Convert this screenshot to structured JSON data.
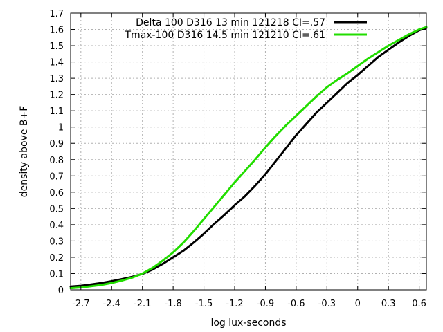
{
  "chart_data": {
    "type": "line",
    "xlabel": "log lux-seconds",
    "ylabel": "density above B+F",
    "xlim": [
      -2.8,
      0.67
    ],
    "ylim": [
      0,
      1.7
    ],
    "x_ticks": [
      -2.7,
      -2.4,
      -2.1,
      -1.8,
      -1.5,
      -1.2,
      -0.9,
      -0.6,
      -0.3,
      0,
      0.3,
      0.6
    ],
    "x_tick_labels": [
      "-2.7",
      "-2.4",
      "-2.1",
      "-1.8",
      "-1.5",
      "-1.2",
      "-0.9",
      "-0.6",
      "-0.3",
      "0",
      "0.3",
      "0.6"
    ],
    "y_ticks": [
      0,
      0.1,
      0.2,
      0.3,
      0.4,
      0.5,
      0.6,
      0.7,
      0.8,
      0.9,
      1.0,
      1.1,
      1.2,
      1.3,
      1.4,
      1.5,
      1.6,
      1.7
    ],
    "y_tick_labels": [
      "0",
      "0.1",
      "0.2",
      "0.3",
      "0.4",
      "0.5",
      "0.6",
      "0.7",
      "0.8",
      "0.9",
      "1",
      "1.1",
      "1.2",
      "1.3",
      "1.4",
      "1.5",
      "1.6",
      "1.7"
    ],
    "grid": true,
    "legend_position": "top-right",
    "series": [
      {
        "name": "Delta 100 D316 13 min 121218 CI=.57",
        "color": "#000000",
        "x": [
          -2.8,
          -2.7,
          -2.6,
          -2.5,
          -2.4,
          -2.3,
          -2.2,
          -2.1,
          -2.0,
          -1.9,
          -1.8,
          -1.7,
          -1.6,
          -1.5,
          -1.4,
          -1.3,
          -1.2,
          -1.1,
          -1.0,
          -0.9,
          -0.8,
          -0.7,
          -0.6,
          -0.5,
          -0.4,
          -0.3,
          -0.2,
          -0.1,
          0.0,
          0.1,
          0.2,
          0.3,
          0.4,
          0.5,
          0.6,
          0.67
        ],
        "y": [
          0.02,
          0.025,
          0.033,
          0.042,
          0.053,
          0.066,
          0.08,
          0.098,
          0.125,
          0.16,
          0.2,
          0.24,
          0.29,
          0.345,
          0.405,
          0.46,
          0.52,
          0.575,
          0.64,
          0.71,
          0.79,
          0.87,
          0.95,
          1.02,
          1.09,
          1.15,
          1.21,
          1.27,
          1.32,
          1.375,
          1.43,
          1.475,
          1.52,
          1.56,
          1.595,
          1.61
        ]
      },
      {
        "name": "Tmax-100 D316 14.5 min 121210 CI=.61",
        "color": "#22dd00",
        "x": [
          -2.8,
          -2.7,
          -2.6,
          -2.5,
          -2.4,
          -2.3,
          -2.2,
          -2.1,
          -2.0,
          -1.9,
          -1.8,
          -1.7,
          -1.6,
          -1.5,
          -1.4,
          -1.3,
          -1.2,
          -1.1,
          -1.0,
          -0.9,
          -0.8,
          -0.7,
          -0.6,
          -0.5,
          -0.4,
          -0.3,
          -0.2,
          -0.1,
          0.0,
          0.1,
          0.2,
          0.3,
          0.4,
          0.5,
          0.6,
          0.67
        ],
        "y": [
          0.01,
          0.015,
          0.022,
          0.03,
          0.042,
          0.057,
          0.075,
          0.1,
          0.135,
          0.18,
          0.23,
          0.29,
          0.36,
          0.435,
          0.51,
          0.585,
          0.66,
          0.73,
          0.8,
          0.875,
          0.945,
          1.01,
          1.07,
          1.13,
          1.19,
          1.245,
          1.29,
          1.33,
          1.375,
          1.42,
          1.46,
          1.5,
          1.535,
          1.57,
          1.6,
          1.615
        ]
      }
    ]
  }
}
